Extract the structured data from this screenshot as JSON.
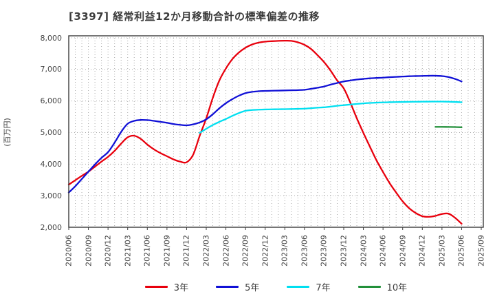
{
  "chart_data": {
    "type": "line",
    "title": "[3397]  経常利益12か月移動合計の標準偏差の推移",
    "ylabel": "(百万円)",
    "ylim": [
      2000,
      8000
    ],
    "ytick_step": 1000,
    "y_tick_labels": [
      "2,000",
      "3,000",
      "4,000",
      "5,000",
      "6,000",
      "7,000",
      "8,000"
    ],
    "x_labels": [
      "2020/06",
      "2020/09",
      "2020/12",
      "2021/03",
      "2021/06",
      "2021/09",
      "2021/12",
      "2022/03",
      "2022/06",
      "2022/09",
      "2022/12",
      "2023/03",
      "2023/06",
      "2023/09",
      "2023/12",
      "2024/03",
      "2024/06",
      "2024/09",
      "2024/12",
      "2025/03",
      "2025/06",
      "2025/09"
    ],
    "x_label_month_step": 3,
    "months_span": 63,
    "grid": "dotted monthly vertical + 1000-step horizontal",
    "legend_position": "bottom",
    "axis_color": "#3c3c3c",
    "grid_color": "#a8a8a8",
    "series": [
      {
        "name": "3年",
        "color": "#e8000d",
        "start_month_index": 0,
        "values": [
          3350,
          3490,
          3630,
          3760,
          3920,
          4080,
          4230,
          4420,
          4650,
          4850,
          4900,
          4800,
          4620,
          4470,
          4350,
          4250,
          4150,
          4080,
          4060,
          4300,
          4900,
          5450,
          6100,
          6650,
          7030,
          7330,
          7540,
          7690,
          7790,
          7850,
          7880,
          7895,
          7905,
          7910,
          7905,
          7860,
          7780,
          7650,
          7450,
          7230,
          6960,
          6650,
          6400,
          5950,
          5450,
          4990,
          4550,
          4120,
          3750,
          3400,
          3100,
          2820,
          2600,
          2450,
          2350,
          2330,
          2360,
          2420,
          2430,
          2300,
          2110
        ]
      },
      {
        "name": "5年",
        "color": "#1111d6",
        "start_month_index": 0,
        "values": [
          3100,
          3300,
          3530,
          3760,
          3990,
          4200,
          4380,
          4680,
          5020,
          5280,
          5370,
          5400,
          5395,
          5370,
          5340,
          5310,
          5270,
          5245,
          5230,
          5260,
          5320,
          5420,
          5580,
          5770,
          5930,
          6060,
          6170,
          6250,
          6290,
          6310,
          6320,
          6325,
          6330,
          6335,
          6340,
          6345,
          6355,
          6385,
          6420,
          6460,
          6520,
          6570,
          6620,
          6650,
          6680,
          6700,
          6720,
          6730,
          6740,
          6755,
          6765,
          6775,
          6785,
          6790,
          6795,
          6800,
          6800,
          6790,
          6760,
          6700,
          6620
        ]
      },
      {
        "name": "7年",
        "color": "#00dff0",
        "start_month_index": 20,
        "values": [
          4990,
          5120,
          5240,
          5340,
          5430,
          5530,
          5620,
          5690,
          5715,
          5725,
          5732,
          5736,
          5739,
          5742,
          5746,
          5751,
          5758,
          5772,
          5788,
          5800,
          5822,
          5848,
          5868,
          5888,
          5908,
          5925,
          5938,
          5948,
          5955,
          5961,
          5966,
          5970,
          5974,
          5977,
          5979,
          5981,
          5982,
          5982,
          5978,
          5970,
          5960
        ]
      },
      {
        "name": "10年",
        "color": "#22903a",
        "start_month_index": 56,
        "values": [
          5180,
          5180,
          5178,
          5174,
          5168
        ]
      }
    ]
  }
}
